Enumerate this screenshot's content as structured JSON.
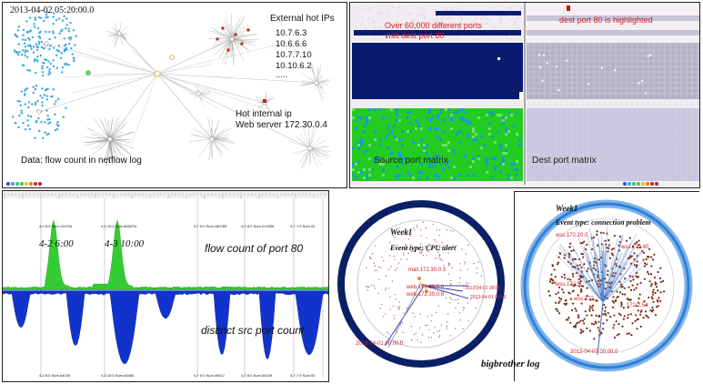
{
  "netflow": {
    "timestamp": "2013-04-02 05:20:00.0",
    "external_title": "External hot IPs",
    "external_ips": [
      "10.7.6.3",
      "10.6.6.6",
      "10.7.7.10",
      "10.10.6.2",
      "....."
    ],
    "internal_title": "Hot internal ip",
    "webserver": "Web server 172.30.0.4",
    "data_note": "Data: flow count in netflow log"
  },
  "port_matrix": {
    "source_note": "Over 60,000 different ports\nvisit dest port 80",
    "dest_note": "dest port 80 is highlighted",
    "source_label": "Source port matrix",
    "dest_label": "Dest port matrix"
  },
  "timeline": {
    "flow_label": "flow count of port 80",
    "src_label": "distinct src port count",
    "peak1": "4-2 6:00",
    "peak2": "4-3 10:00",
    "top_ticks": [
      "4-2 6:0 Sum 129744",
      "4-3 10:0 Sum 84557N",
      "4-7 5:0 Sum 189789",
      "4-7 6:0 Sum 214535",
      "4-7 7:0 Sum 22"
    ],
    "bottom_ticks": [
      "4-2 6:0 Sum 64035",
      "4-3 10:0 Sum 64480",
      "4-7 5:0 Sum 49617",
      "4-7 6:0 Sum 54249",
      "4-7 7:0 Sum 53"
    ]
  },
  "bigbrother": {
    "caption": "bigbrother log",
    "left": {
      "week": "Week1",
      "event": "Event type: CPU alert",
      "nodes": [
        "mail.172.30.0.3",
        "web.172.30.0.6",
        "web.172.30.0.8",
        "2013-04-01 00:00",
        "2013-04-01 00:00"
      ],
      "time_label": "2013-04-01 00:00.0"
    },
    "right": {
      "week": "Week1",
      "event": "Event type: connection problem",
      "nodes": [
        "wss.172.20.0.",
        "wss.172.40",
        "wss.172.5",
        "wss.172.",
        "172.2.54"
      ],
      "time_label": "2013-04-07 00:00.0"
    }
  },
  "colors": {
    "border": "#222222",
    "annotation_red": "#d0202a",
    "matrix_navy": "#0a1a6e",
    "matrix_green": "#22cc22",
    "area_green": "#33cc33",
    "area_blue": "#1133cc",
    "ring_navy": "#0b1f66",
    "ring_blue": "#2f7fd6",
    "node_brown": "#7a2a12"
  }
}
